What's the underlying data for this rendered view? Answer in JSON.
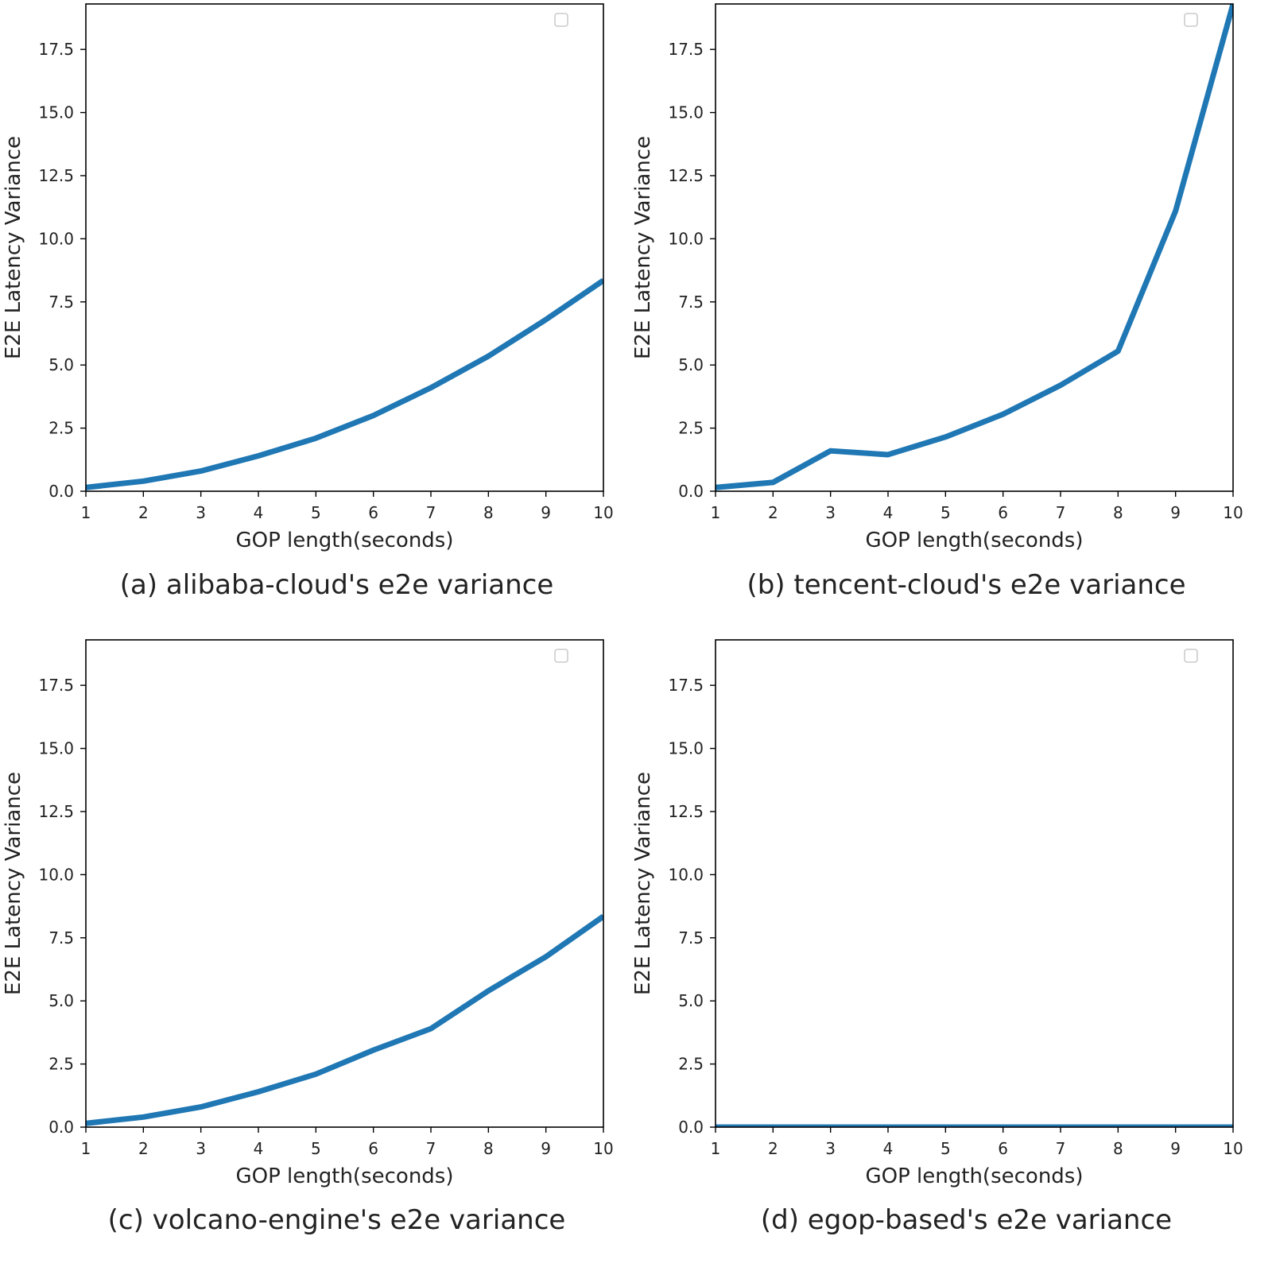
{
  "colors": {
    "line": "#1f77b4",
    "axes": "#000000",
    "legend_box": "#cccccc",
    "text": "#222222"
  },
  "chart_data": [
    {
      "type": "line",
      "caption": "(a) alibaba-cloud's e2e variance",
      "xlabel": "GOP length(seconds)",
      "ylabel": "E2E Latency Variance",
      "xlim": [
        1,
        10
      ],
      "ylim": [
        0,
        19.3
      ],
      "xticks": [
        1,
        2,
        3,
        4,
        5,
        6,
        7,
        8,
        9,
        10
      ],
      "yticks": [
        0.0,
        2.5,
        5.0,
        7.5,
        10.0,
        12.5,
        15.0,
        17.5
      ],
      "ytick_labels": [
        "0.0",
        "2.5",
        "5.0",
        "7.5",
        "10.0",
        "12.5",
        "15.0",
        "17.5"
      ],
      "legend": "empty box, top-right",
      "series": [
        {
          "name": "",
          "x": [
            1,
            2,
            3,
            4,
            5,
            6,
            7,
            8,
            9,
            10
          ],
          "values": [
            0.15,
            0.4,
            0.8,
            1.4,
            2.1,
            3.0,
            4.1,
            5.35,
            6.8,
            8.35
          ]
        }
      ]
    },
    {
      "type": "line",
      "caption": "(b) tencent-cloud's e2e variance",
      "xlabel": "GOP length(seconds)",
      "ylabel": "E2E Latency Variance",
      "xlim": [
        1,
        10
      ],
      "ylim": [
        0,
        19.3
      ],
      "xticks": [
        1,
        2,
        3,
        4,
        5,
        6,
        7,
        8,
        9,
        10
      ],
      "yticks": [
        0.0,
        2.5,
        5.0,
        7.5,
        10.0,
        12.5,
        15.0,
        17.5
      ],
      "ytick_labels": [
        "0.0",
        "2.5",
        "5.0",
        "7.5",
        "10.0",
        "12.5",
        "15.0",
        "17.5"
      ],
      "legend": "empty box, top-right",
      "series": [
        {
          "name": "",
          "x": [
            1,
            2,
            3,
            4,
            5,
            6,
            7,
            8,
            9,
            10
          ],
          "values": [
            0.15,
            0.35,
            1.6,
            1.45,
            2.15,
            3.05,
            4.2,
            5.55,
            11.1,
            19.3
          ]
        }
      ]
    },
    {
      "type": "line",
      "caption": "(c) volcano-engine's e2e variance",
      "xlabel": "GOP length(seconds)",
      "ylabel": "E2E Latency Variance",
      "xlim": [
        1,
        10
      ],
      "ylim": [
        0,
        19.3
      ],
      "xticks": [
        1,
        2,
        3,
        4,
        5,
        6,
        7,
        8,
        9,
        10
      ],
      "yticks": [
        0.0,
        2.5,
        5.0,
        7.5,
        10.0,
        12.5,
        15.0,
        17.5
      ],
      "ytick_labels": [
        "0.0",
        "2.5",
        "5.0",
        "7.5",
        "10.0",
        "12.5",
        "15.0",
        "17.5"
      ],
      "legend": "empty box, top-right",
      "series": [
        {
          "name": "",
          "x": [
            1,
            2,
            3,
            4,
            5,
            6,
            7,
            8,
            9,
            10
          ],
          "values": [
            0.15,
            0.4,
            0.8,
            1.4,
            2.1,
            3.05,
            3.9,
            5.4,
            6.75,
            8.35
          ]
        }
      ]
    },
    {
      "type": "line",
      "caption": "(d) egop-based's e2e variance",
      "xlabel": "GOP length(seconds)",
      "ylabel": "E2E Latency Variance",
      "xlim": [
        1,
        10
      ],
      "ylim": [
        0,
        19.3
      ],
      "xticks": [
        1,
        2,
        3,
        4,
        5,
        6,
        7,
        8,
        9,
        10
      ],
      "yticks": [
        0.0,
        2.5,
        5.0,
        7.5,
        10.0,
        12.5,
        15.0,
        17.5
      ],
      "ytick_labels": [
        "0.0",
        "2.5",
        "5.0",
        "7.5",
        "10.0",
        "12.5",
        "15.0",
        "17.5"
      ],
      "legend": "empty box, top-right",
      "series": [
        {
          "name": "",
          "x": [
            1,
            2,
            3,
            4,
            5,
            6,
            7,
            8,
            9,
            10
          ],
          "values": [
            0.0,
            0.0,
            0.0,
            0.0,
            0.0,
            0.0,
            0.0,
            0.0,
            0.0,
            0.0
          ]
        }
      ]
    }
  ]
}
